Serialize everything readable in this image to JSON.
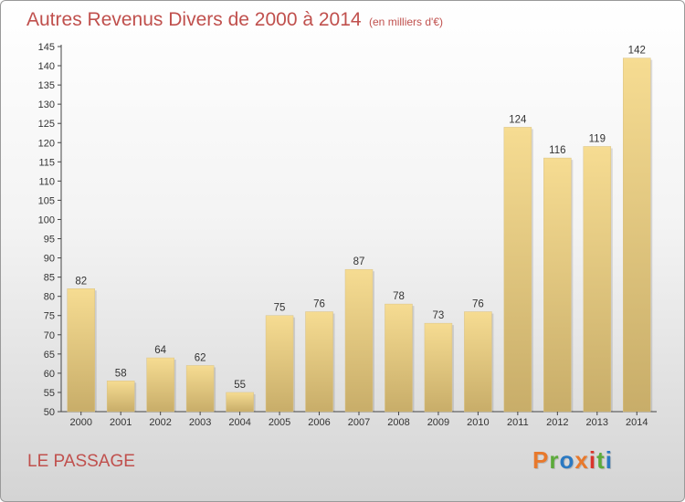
{
  "header": {
    "title": "Autres Revenus Divers de 2000 à 2014",
    "unit": "(en milliers d'€)"
  },
  "footer": {
    "place": "LE PASSAGE",
    "logo": "Proxiti"
  },
  "colors": {
    "title": "#c0504d",
    "bar_top": "#f6dc92",
    "bar_bottom": "#c8ad69",
    "logo": [
      "#e8792c",
      "#5cab3a",
      "#2a79c2",
      "#e8792c",
      "#d9352b",
      "#5cab3a",
      "#2a79c2"
    ]
  },
  "chart_data": {
    "type": "bar",
    "categories": [
      "2000",
      "2001",
      "2002",
      "2003",
      "2004",
      "2005",
      "2006",
      "2007",
      "2008",
      "2009",
      "2010",
      "2011",
      "2012",
      "2013",
      "2014"
    ],
    "values": [
      82,
      58,
      64,
      62,
      55,
      75,
      76,
      87,
      78,
      73,
      76,
      124,
      116,
      119,
      142
    ],
    "ylim": [
      50,
      145
    ],
    "yticks": [
      50,
      55,
      60,
      65,
      70,
      75,
      80,
      85,
      90,
      95,
      100,
      105,
      110,
      115,
      120,
      125,
      130,
      135,
      140,
      145
    ],
    "grid": false,
    "data_labels": true
  }
}
